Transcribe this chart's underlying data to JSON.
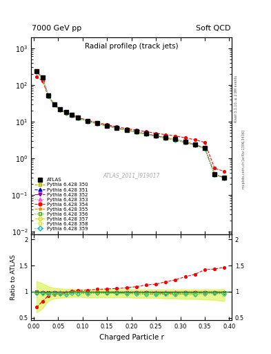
{
  "title_plot": "Radial profileρ (track jets)",
  "header_left": "7000 GeV pp",
  "header_right": "Soft QCD",
  "watermark": "ATLAS_2011_I919017",
  "right_label_top": "Rivet 3.1.10, ≥ 2.9M events",
  "right_label_bot": "mcplots.cern.ch [arXiv:1306.3436]",
  "xlabel": "Charged Particle r",
  "ylabel_bot": "Ratio to ATLAS",
  "r_values": [
    0.006,
    0.018,
    0.03,
    0.042,
    0.054,
    0.066,
    0.078,
    0.09,
    0.11,
    0.13,
    0.15,
    0.17,
    0.19,
    0.21,
    0.23,
    0.25,
    0.27,
    0.29,
    0.31,
    0.33,
    0.35,
    0.37,
    0.39
  ],
  "atlas_y": [
    235,
    160,
    52,
    30,
    22,
    18,
    15,
    13,
    10.5,
    9.0,
    7.8,
    6.8,
    6.0,
    5.3,
    4.7,
    4.2,
    3.7,
    3.3,
    2.8,
    2.4,
    1.9,
    0.37,
    0.3
  ],
  "atlas_yerr": [
    15,
    10,
    4,
    2,
    1.5,
    1.2,
    1.0,
    0.9,
    0.7,
    0.6,
    0.5,
    0.45,
    0.4,
    0.35,
    0.3,
    0.28,
    0.25,
    0.22,
    0.2,
    0.18,
    0.15,
    0.04,
    0.03
  ],
  "pythia_350": [
    230,
    155,
    50,
    29,
    21,
    17,
    14.5,
    12.5,
    10.2,
    8.8,
    7.6,
    6.6,
    5.8,
    5.1,
    4.5,
    4.0,
    3.55,
    3.15,
    2.7,
    2.3,
    1.85,
    0.36,
    0.29
  ],
  "pythia_351": [
    232,
    157,
    51,
    29.5,
    21.5,
    17.5,
    15,
    13,
    10.4,
    8.9,
    7.7,
    6.7,
    5.9,
    5.2,
    4.6,
    4.1,
    3.6,
    3.2,
    2.75,
    2.35,
    1.88,
    0.365,
    0.295
  ],
  "pythia_352": [
    233,
    158,
    51,
    29.5,
    21.5,
    17.5,
    15,
    13,
    10.4,
    8.9,
    7.7,
    6.7,
    5.9,
    5.2,
    4.6,
    4.1,
    3.6,
    3.2,
    2.75,
    2.35,
    1.88,
    0.365,
    0.295
  ],
  "pythia_353": [
    234,
    159,
    51.5,
    30,
    22,
    18,
    15,
    13,
    10.5,
    9.0,
    7.8,
    6.8,
    6.0,
    5.3,
    4.7,
    4.2,
    3.7,
    3.3,
    2.8,
    2.4,
    1.9,
    0.37,
    0.3
  ],
  "pythia_354": [
    165,
    130,
    48,
    28.5,
    21,
    17.5,
    15.2,
    13.3,
    10.8,
    9.4,
    8.2,
    7.2,
    6.45,
    5.8,
    5.3,
    4.8,
    4.4,
    4.05,
    3.6,
    3.2,
    2.7,
    0.53,
    0.44
  ],
  "pythia_355": [
    232,
    157,
    51,
    29.5,
    21.5,
    17.5,
    15,
    13,
    10.4,
    8.9,
    7.7,
    6.7,
    5.9,
    5.2,
    4.6,
    4.1,
    3.6,
    3.2,
    2.75,
    2.35,
    1.88,
    0.365,
    0.295
  ],
  "pythia_356": [
    230,
    155,
    50,
    29,
    21,
    17,
    14.5,
    12.5,
    10.2,
    8.8,
    7.6,
    6.6,
    5.8,
    5.1,
    4.5,
    4.0,
    3.55,
    3.15,
    2.7,
    2.3,
    1.85,
    0.36,
    0.29
  ],
  "pythia_357": [
    228,
    154,
    49.5,
    28.8,
    21,
    17,
    14.5,
    12.5,
    10.2,
    8.8,
    7.6,
    6.6,
    5.8,
    5.1,
    4.5,
    4.0,
    3.55,
    3.15,
    2.7,
    2.3,
    1.85,
    0.36,
    0.29
  ],
  "pythia_358": [
    228,
    154,
    49.5,
    28.8,
    21,
    17,
    14.5,
    12.5,
    10.1,
    8.7,
    7.55,
    6.55,
    5.75,
    5.05,
    4.45,
    3.95,
    3.5,
    3.1,
    2.65,
    2.25,
    1.82,
    0.355,
    0.285
  ],
  "pythia_359": [
    229,
    154.5,
    49.8,
    28.9,
    21,
    17,
    14.5,
    12.5,
    10.1,
    8.75,
    7.57,
    6.57,
    5.77,
    5.07,
    4.47,
    3.97,
    3.52,
    3.12,
    2.67,
    2.27,
    1.83,
    0.357,
    0.287
  ],
  "colors": {
    "atlas": "#000000",
    "p350": "#aaaa00",
    "p351": "#0000dd",
    "p352": "#990099",
    "p353": "#ff55bb",
    "p354": "#ff0000",
    "p355": "#ff8800",
    "p356": "#33aa00",
    "p357": "#dddd00",
    "p358": "#ccee44",
    "p359": "#00bbbb"
  },
  "band_color": "#ccee00",
  "band_alpha": 0.45,
  "band_ratio_low": [
    0.6,
    0.68,
    0.82,
    0.87,
    0.88,
    0.89,
    0.9,
    0.9,
    0.89,
    0.89,
    0.89,
    0.89,
    0.89,
    0.88,
    0.88,
    0.88,
    0.87,
    0.87,
    0.86,
    0.86,
    0.85,
    0.84,
    0.82
  ],
  "band_ratio_high": [
    1.2,
    1.16,
    1.1,
    1.07,
    1.06,
    1.05,
    1.05,
    1.04,
    1.04,
    1.04,
    1.04,
    1.04,
    1.04,
    1.04,
    1.04,
    1.04,
    1.04,
    1.04,
    1.04,
    1.04,
    1.04,
    1.04,
    1.05
  ]
}
